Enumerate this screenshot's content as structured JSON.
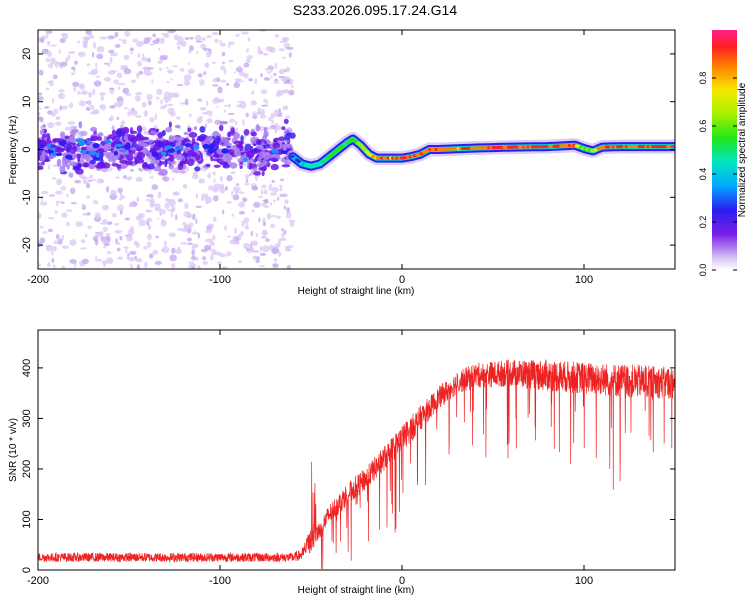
{
  "title": "S233.2026.095.17.24.G14",
  "chart_data": [
    {
      "type": "heatmap",
      "title": "S233.2026.095.17.24.G14",
      "xlabel": "Height of straight line (km)",
      "ylabel": "Frequency (Hz)",
      "xlim": [
        -200,
        150
      ],
      "ylim": [
        -25,
        25
      ],
      "xticks": [
        -200,
        -100,
        0,
        100
      ],
      "yticks": [
        -20,
        -10,
        0,
        10,
        20
      ],
      "noise_region_x": [
        -200,
        -60
      ],
      "tone_track": {
        "x": [
          -60,
          -55,
          -50,
          -45,
          -40,
          -35,
          -30,
          -27,
          -23,
          -18,
          -14,
          -10,
          -5,
          0,
          5,
          10,
          15,
          20,
          40,
          60,
          80,
          95,
          100,
          105,
          110,
          120,
          130,
          150
        ],
        "freq_hz": [
          -1.5,
          -3,
          -3.5,
          -3,
          -1.5,
          0,
          1.5,
          2.2,
          1,
          -1,
          -1.8,
          -1.8,
          -1.8,
          -1.8,
          -1.5,
          -1,
          0,
          0,
          0.3,
          0.5,
          0.6,
          0.9,
          0.2,
          -0.3,
          0.5,
          0.6,
          0.6,
          0.6
        ],
        "amplitude": [
          0.3,
          0.4,
          0.5,
          0.5,
          0.6,
          0.6,
          0.6,
          0.6,
          0.7,
          0.8,
          0.85,
          0.9,
          0.9,
          0.9,
          0.9,
          0.9,
          0.9,
          0.9,
          0.9,
          0.95,
          0.95,
          0.9,
          0.6,
          0.7,
          0.9,
          0.95,
          0.95,
          0.95
        ]
      },
      "colorbar": {
        "label": "Normalized spectral amplitude",
        "range": [
          0,
          1
        ],
        "ticks": [
          0.0,
          0.2,
          0.4,
          0.6,
          0.8
        ]
      }
    },
    {
      "type": "line",
      "xlabel": "Height of straight line (km)",
      "ylabel": "SNR (10 * v/v)",
      "xlim": [
        -200,
        150
      ],
      "ylim": [
        0,
        475
      ],
      "xticks": [
        -200,
        -100,
        0,
        100
      ],
      "yticks": [
        0,
        100,
        200,
        300,
        400
      ],
      "color": "#ee2222",
      "trend": {
        "x": [
          -200,
          -60,
          -55,
          -50,
          -45,
          -40,
          -30,
          -20,
          -10,
          0,
          10,
          20,
          30,
          40,
          60,
          80,
          100,
          120,
          150
        ],
        "mean": [
          25,
          25,
          30,
          60,
          80,
          110,
          150,
          180,
          220,
          260,
          300,
          340,
          370,
          385,
          390,
          385,
          380,
          375,
          370
        ],
        "spread": [
          20,
          20,
          25,
          60,
          40,
          45,
          50,
          50,
          55,
          60,
          55,
          50,
          50,
          55,
          60,
          70,
          70,
          75,
          70
        ]
      }
    }
  ]
}
